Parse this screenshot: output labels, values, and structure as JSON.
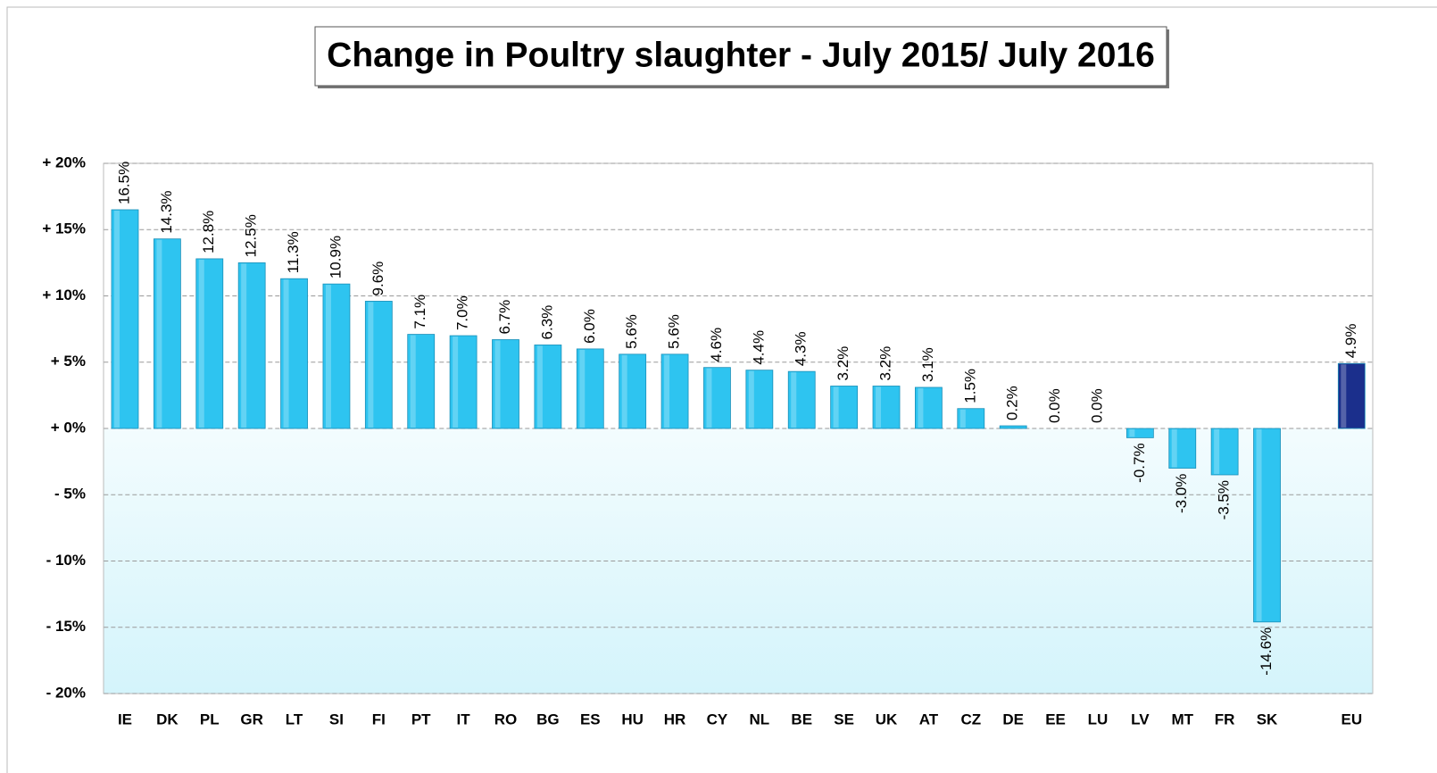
{
  "chart_data": {
    "type": "bar",
    "title": "Change in Poultry slaughter - July 2015/ July 2016",
    "categories": [
      "IE",
      "DK",
      "PL",
      "GR",
      "LT",
      "SI",
      "FI",
      "PT",
      "IT",
      "RO",
      "BG",
      "ES",
      "HU",
      "HR",
      "CY",
      "NL",
      "BE",
      "SE",
      "UK",
      "AT",
      "CZ",
      "DE",
      "EE",
      "LU",
      "LV",
      "MT",
      "FR",
      "SK",
      null,
      "EU"
    ],
    "values": [
      16.5,
      14.3,
      12.8,
      12.5,
      11.3,
      10.9,
      9.6,
      7.1,
      7.0,
      6.7,
      6.3,
      6.0,
      5.6,
      5.6,
      4.6,
      4.4,
      4.3,
      3.2,
      3.2,
      3.1,
      1.5,
      0.2,
      0.0,
      0.0,
      -0.7,
      -3.0,
      -3.5,
      -14.6,
      null,
      4.9
    ],
    "value_labels": [
      "16.5%",
      "14.3%",
      "12.8%",
      "12.5%",
      "11.3%",
      "10.9%",
      "9.6%",
      "7.1%",
      "7.0%",
      "6.7%",
      "6.3%",
      "6.0%",
      "5.6%",
      "5.6%",
      "4.6%",
      "4.4%",
      "4.3%",
      "3.2%",
      "3.2%",
      "3.1%",
      "1.5%",
      "0.2%",
      "0.0%",
      "0.0%",
      "-0.7%",
      "-3.0%",
      "-3.5%",
      "-14.6%",
      null,
      "4.9%"
    ],
    "colors": [
      "#2ec4f0",
      "#2ec4f0",
      "#2ec4f0",
      "#2ec4f0",
      "#2ec4f0",
      "#2ec4f0",
      "#2ec4f0",
      "#2ec4f0",
      "#2ec4f0",
      "#2ec4f0",
      "#2ec4f0",
      "#2ec4f0",
      "#2ec4f0",
      "#2ec4f0",
      "#2ec4f0",
      "#2ec4f0",
      "#2ec4f0",
      "#2ec4f0",
      "#2ec4f0",
      "#2ec4f0",
      "#2ec4f0",
      "#2ec4f0",
      "#2ec4f0",
      "#2ec4f0",
      "#2ec4f0",
      "#2ec4f0",
      "#2ec4f0",
      "#2ec4f0",
      null,
      "#1b2f8c"
    ],
    "ylim": [
      -20,
      20
    ],
    "yticks": [
      {
        "value": -20,
        "label": "- 20%"
      },
      {
        "value": -15,
        "label": "- 15%"
      },
      {
        "value": -10,
        "label": "- 10%"
      },
      {
        "value": -5,
        "label": "- 5%"
      },
      {
        "value": 0,
        "label": "+ 0%"
      },
      {
        "value": 5,
        "label": "+ 5%"
      },
      {
        "value": 10,
        "label": "+ 10%"
      },
      {
        "value": 15,
        "label": "+ 15%"
      },
      {
        "value": 20,
        "label": "+ 20%"
      }
    ],
    "grid": true
  }
}
